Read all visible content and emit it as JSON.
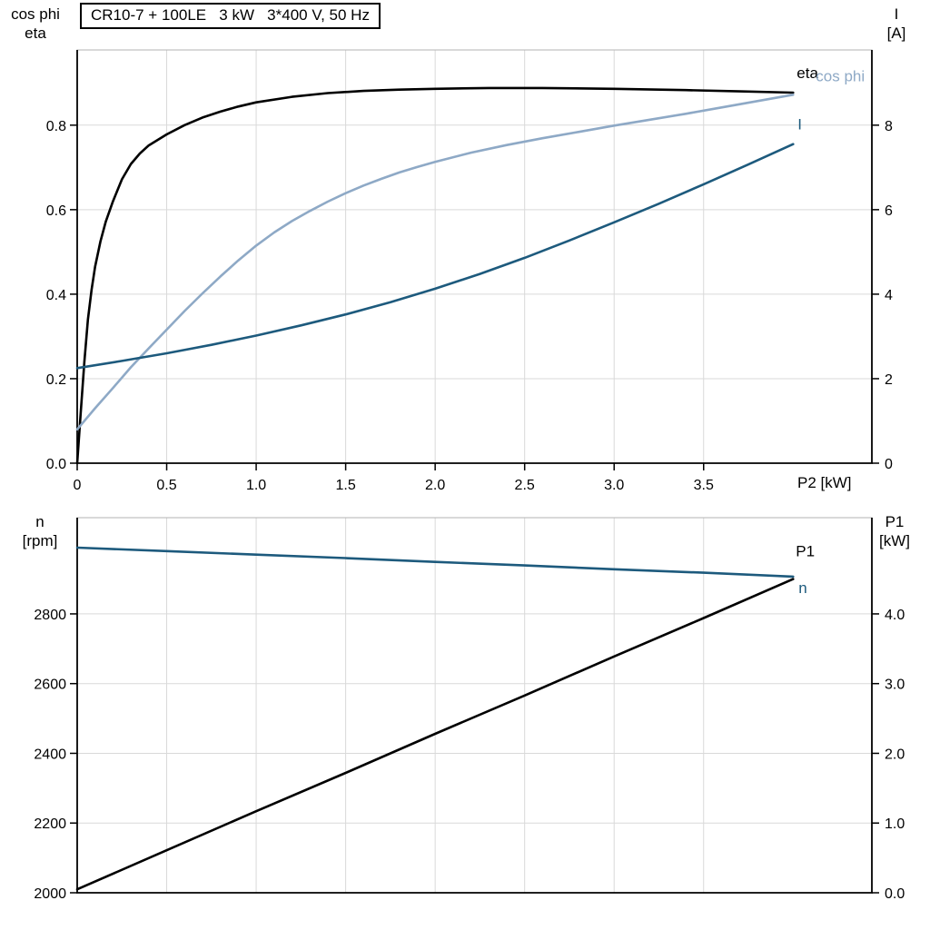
{
  "title_box": {
    "text": "CR10-7 + 100LE   3 kW   3*400 V, 50 Hz"
  },
  "colors": {
    "black": "#000000",
    "dark_blue": "#1d5a7d",
    "light_blue": "#8ea9c6",
    "grid": "#d9d9d9",
    "frame": "#b3b3b3",
    "axis": "#000000"
  },
  "chart_data": [
    {
      "type": "line",
      "name": "electrical-curves",
      "title": "CR10-7 + 100LE   3 kW   3*400 V, 50 Hz",
      "x_axis": {
        "label": "P2 [kW]",
        "range": [
          0,
          4.44
        ],
        "ticks": [
          [
            0,
            "0"
          ],
          [
            0.5,
            "0.5"
          ],
          [
            1,
            "1.0"
          ],
          [
            1.5,
            "1.5"
          ],
          [
            2,
            "2.0"
          ],
          [
            2.5,
            "2.5"
          ],
          [
            3,
            "3.0"
          ],
          [
            3.5,
            "3.5"
          ]
        ]
      },
      "left_axis": {
        "corner_label": "cos phi\neta",
        "range": [
          0,
          0.978
        ],
        "ticks": [
          [
            0,
            "0.0"
          ],
          [
            0.2,
            "0.2"
          ],
          [
            0.4,
            "0.4"
          ],
          [
            0.6,
            "0.6"
          ],
          [
            0.8,
            "0.8"
          ]
        ]
      },
      "right_axis": {
        "corner_label": "I\n[A]",
        "range": [
          0,
          9.78
        ],
        "ticks": [
          [
            0,
            "0"
          ],
          [
            2,
            "2"
          ],
          [
            4,
            "4"
          ],
          [
            6,
            "6"
          ],
          [
            8,
            "8"
          ]
        ]
      },
      "series": [
        {
          "name": "eta",
          "label": "eta",
          "color": "black",
          "axis": "left",
          "points": [
            [
              0,
              0
            ],
            [
              0.02,
              0.12
            ],
            [
              0.04,
              0.24
            ],
            [
              0.06,
              0.34
            ],
            [
              0.08,
              0.41
            ],
            [
              0.1,
              0.465
            ],
            [
              0.13,
              0.525
            ],
            [
              0.16,
              0.572
            ],
            [
              0.2,
              0.62
            ],
            [
              0.25,
              0.672
            ],
            [
              0.3,
              0.708
            ],
            [
              0.35,
              0.733
            ],
            [
              0.4,
              0.752
            ],
            [
              0.5,
              0.778
            ],
            [
              0.6,
              0.8
            ],
            [
              0.7,
              0.818
            ],
            [
              0.8,
              0.832
            ],
            [
              0.9,
              0.844
            ],
            [
              1.0,
              0.854
            ],
            [
              1.2,
              0.867
            ],
            [
              1.4,
              0.876
            ],
            [
              1.6,
              0.881
            ],
            [
              1.8,
              0.884
            ],
            [
              2.0,
              0.886
            ],
            [
              2.3,
              0.888
            ],
            [
              2.6,
              0.888
            ],
            [
              3.0,
              0.886
            ],
            [
              3.4,
              0.883
            ],
            [
              3.7,
              0.88
            ],
            [
              4.0,
              0.877
            ]
          ]
        },
        {
          "name": "cos-phi",
          "label": "cos phi",
          "color": "light_blue",
          "axis": "left",
          "points": [
            [
              0,
              0.08
            ],
            [
              0.1,
              0.13
            ],
            [
              0.2,
              0.178
            ],
            [
              0.3,
              0.227
            ],
            [
              0.4,
              0.272
            ],
            [
              0.5,
              0.316
            ],
            [
              0.6,
              0.36
            ],
            [
              0.7,
              0.402
            ],
            [
              0.8,
              0.442
            ],
            [
              0.9,
              0.48
            ],
            [
              1.0,
              0.515
            ],
            [
              1.1,
              0.546
            ],
            [
              1.2,
              0.573
            ],
            [
              1.3,
              0.597
            ],
            [
              1.4,
              0.619
            ],
            [
              1.5,
              0.639
            ],
            [
              1.6,
              0.657
            ],
            [
              1.7,
              0.673
            ],
            [
              1.8,
              0.688
            ],
            [
              1.9,
              0.701
            ],
            [
              2.0,
              0.713
            ],
            [
              2.2,
              0.735
            ],
            [
              2.4,
              0.753
            ],
            [
              2.6,
              0.769
            ],
            [
              2.8,
              0.784
            ],
            [
              3.0,
              0.799
            ],
            [
              3.2,
              0.813
            ],
            [
              3.4,
              0.827
            ],
            [
              3.6,
              0.842
            ],
            [
              3.8,
              0.857
            ],
            [
              4.0,
              0.872
            ]
          ]
        },
        {
          "name": "I",
          "label": "I",
          "color": "dark_blue",
          "axis": "right",
          "points": [
            [
              0,
              2.25
            ],
            [
              0.25,
              2.42
            ],
            [
              0.5,
              2.6
            ],
            [
              0.75,
              2.8
            ],
            [
              1.0,
              3.02
            ],
            [
              1.25,
              3.26
            ],
            [
              1.5,
              3.52
            ],
            [
              1.75,
              3.81
            ],
            [
              2.0,
              4.13
            ],
            [
              2.25,
              4.48
            ],
            [
              2.5,
              4.86
            ],
            [
              2.75,
              5.27
            ],
            [
              3.0,
              5.7
            ],
            [
              3.25,
              6.14
            ],
            [
              3.5,
              6.6
            ],
            [
              3.75,
              7.07
            ],
            [
              4.0,
              7.55
            ]
          ]
        }
      ]
    },
    {
      "type": "line",
      "name": "speed-power-curves",
      "x_axis": {
        "label": "",
        "range": [
          0,
          4.44
        ],
        "ticks": [
          [
            0,
            ""
          ],
          [
            0.5,
            ""
          ],
          [
            1,
            ""
          ],
          [
            1.5,
            ""
          ],
          [
            2,
            ""
          ],
          [
            2.5,
            ""
          ],
          [
            3,
            ""
          ],
          [
            3.5,
            ""
          ]
        ]
      },
      "left_axis": {
        "corner_label": "n\n[rpm]",
        "range": [
          2000,
          3076
        ],
        "ticks": [
          [
            2000,
            "2000"
          ],
          [
            2200,
            "2200"
          ],
          [
            2400,
            "2400"
          ],
          [
            2600,
            "2600"
          ],
          [
            2800,
            "2800"
          ]
        ]
      },
      "right_axis": {
        "corner_label": "P1\n[kW]",
        "range": [
          0,
          5.38
        ],
        "ticks": [
          [
            0,
            "0.0"
          ],
          [
            1,
            "1.0"
          ],
          [
            2,
            "2.0"
          ],
          [
            3,
            "3.0"
          ],
          [
            4,
            "4.0"
          ]
        ]
      },
      "series": [
        {
          "name": "n",
          "label": "n",
          "color": "dark_blue",
          "axis": "left",
          "points": [
            [
              0,
              2990
            ],
            [
              0.5,
              2980
            ],
            [
              1.0,
              2970
            ],
            [
              1.5,
              2960
            ],
            [
              2.0,
              2949
            ],
            [
              2.5,
              2939
            ],
            [
              3.0,
              2928
            ],
            [
              3.5,
              2918
            ],
            [
              4.0,
              2907
            ]
          ]
        },
        {
          "name": "P1",
          "label": "P1",
          "color": "black",
          "axis": "right",
          "points": [
            [
              0,
              0.05
            ],
            [
              0.5,
              0.61
            ],
            [
              1.0,
              1.17
            ],
            [
              1.5,
              1.72
            ],
            [
              2.0,
              2.28
            ],
            [
              2.5,
              2.83
            ],
            [
              3.0,
              3.39
            ],
            [
              3.5,
              3.94
            ],
            [
              4.0,
              4.5
            ]
          ]
        }
      ]
    }
  ]
}
